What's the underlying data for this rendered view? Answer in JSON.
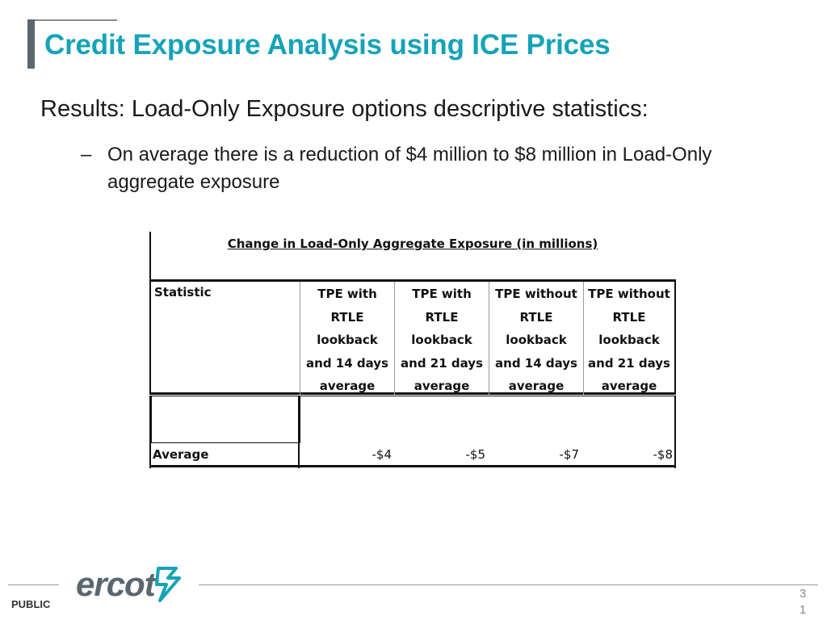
{
  "slide": {
    "title": "Credit Exposure Analysis using ICE Prices",
    "subtitle": "Results: Load-Only Exposure options descriptive statistics:",
    "bullet_dash": "–",
    "bullet": "On average there is a reduction of $4 million to $8 million in Load-Only aggregate exposure"
  },
  "table": {
    "caption": "Change in Load-Only Aggregate Exposure (in millions)",
    "header_statistic": "Statistic",
    "columns": [
      {
        "l1": "TPE with",
        "l2": "RTLE",
        "l3": "lookback",
        "l4": "and 14 days",
        "l5": "average"
      },
      {
        "l1": "TPE with",
        "l2": "RTLE",
        "l3": "lookback",
        "l4": "and 21 days",
        "l5": "average"
      },
      {
        "l1": "TPE without",
        "l2": "RTLE",
        "l3": "lookback",
        "l4": "and 14 days",
        "l5": "average"
      },
      {
        "l1": "TPE without",
        "l2": "RTLE",
        "l3": "lookback",
        "l4": "and 21 days",
        "l5": "average"
      }
    ],
    "row_label": "Average",
    "values": [
      "-$4",
      "-$5",
      "-$7",
      "-$8"
    ]
  },
  "footer": {
    "logo_text": "ercot",
    "classification": "PUBLIC",
    "page_number": "31"
  },
  "colors": {
    "title": "#16a3b8",
    "title_accent": "#5b6770",
    "logo": "#5b6770",
    "logo_mark": "#16a3b8"
  }
}
